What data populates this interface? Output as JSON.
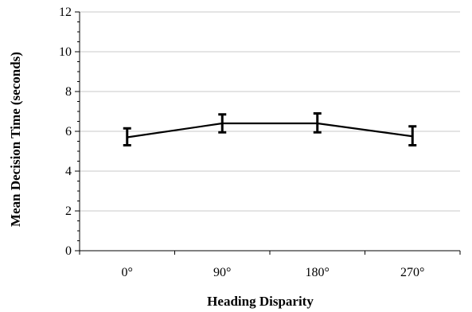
{
  "chart_data": {
    "type": "line",
    "title": "",
    "xlabel": "Heading Disparity",
    "ylabel": "Mean Decision Time (seconds)",
    "categories": [
      "0°",
      "90°",
      "180°",
      "270°"
    ],
    "series": [
      {
        "values": [
          5.7,
          6.4,
          6.4,
          5.75
        ],
        "error_low": [
          5.3,
          5.95,
          5.95,
          5.3
        ],
        "error_high": [
          6.15,
          6.85,
          6.9,
          6.25
        ]
      }
    ],
    "ylim": [
      0,
      12
    ],
    "yticks": [
      "0",
      "2",
      "4",
      "6",
      "8",
      "10",
      "12"
    ],
    "grid": true,
    "legend": "none",
    "colors": {
      "line": "#000000",
      "grid": "#c8c8c8",
      "axis": "#000000"
    }
  }
}
